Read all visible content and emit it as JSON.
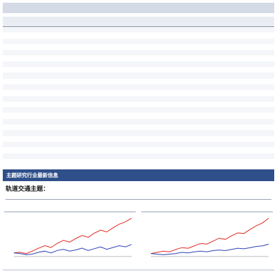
{
  "section_banner": {
    "title": "主题研究行业最新信息"
  },
  "topic": {
    "title": "轨道交通主题："
  },
  "table": {
    "row_count": 23,
    "column_count": 15
  },
  "chart_data": [
    {
      "type": "line",
      "title": "",
      "series": [
        {
          "values": [
            100,
            101,
            99,
            103,
            108,
            112,
            109,
            116,
            121,
            118,
            124,
            129,
            126,
            133,
            138,
            135,
            142,
            148,
            152,
            158
          ]
        },
        {
          "values": [
            100,
            99,
            97,
            98,
            101,
            103,
            100,
            104,
            106,
            103,
            105,
            108,
            104,
            107,
            110,
            106,
            109,
            112,
            110,
            114
          ]
        }
      ],
      "colors": [
        "#e0261b",
        "#2a3fb5"
      ]
    },
    {
      "type": "line",
      "title": "",
      "series": [
        {
          "values": [
            100,
            102,
            104,
            103,
            107,
            110,
            109,
            113,
            117,
            116,
            121,
            126,
            124,
            130,
            135,
            134,
            141,
            147,
            152,
            160
          ]
        },
        {
          "values": [
            100,
            99,
            98,
            99,
            100,
            102,
            101,
            103,
            104,
            103,
            105,
            106,
            105,
            107,
            109,
            108,
            110,
            112,
            113,
            116
          ]
        }
      ],
      "colors": [
        "#e0261b",
        "#2a3fb5"
      ]
    }
  ],
  "colors": {
    "banner": "#2f4f8a",
    "caption_bar": "#d4dae6",
    "series_primary": "#e0261b",
    "series_secondary": "#2a3fb5"
  }
}
